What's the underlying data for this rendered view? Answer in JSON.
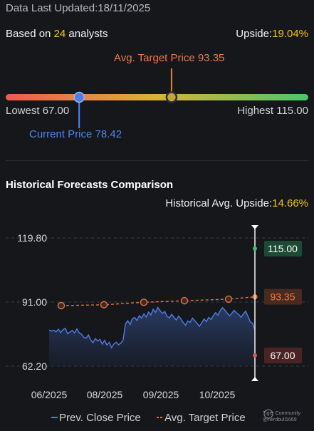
{
  "header": {
    "updated_label": "Data Last Updated:",
    "updated_date": "18/11/2025",
    "based_prefix": "Based on ",
    "analyst_count": "24",
    "based_suffix": " analysts",
    "upside_label": "Upside:",
    "upside_value": "19.04%"
  },
  "range": {
    "avg_target_label": "Avg. Target Price 93.35",
    "lowest_label": "Lowest 67.00",
    "highest_label": "Highest 115.00",
    "current_label": "Current Price 78.42",
    "low": 67.0,
    "high": 115.0,
    "current": 78.42,
    "avg_target": 93.35
  },
  "historical": {
    "title": "Historical Forecasts Comparison",
    "upside_label": "Historical Avg. Upside:",
    "upside_value": "14.66%"
  },
  "chart_data": {
    "type": "line",
    "x_ticks": [
      "06/2025",
      "08/2025",
      "09/2025",
      "10/2025"
    ],
    "y_ticks": [
      "119.80",
      "91.00",
      "62.20"
    ],
    "ylim": [
      62.2,
      119.8
    ],
    "series": [
      {
        "name": "Prev. Close Price",
        "color": "#4f7de6",
        "values": [
          78.5,
          77.9,
          78.4,
          77.6,
          78.8,
          77.3,
          78.6,
          79.2,
          76.8,
          77.5,
          78.3,
          77.1,
          78.9,
          77.2,
          76.5,
          75.1,
          74.8,
          76.2,
          73.9,
          72.8,
          74.6,
          73.5,
          74.2,
          72.1,
          73.8,
          71.7,
          72.9,
          70.5,
          72.2,
          73.0,
          71.8,
          72.5,
          73.9,
          81.2,
          82.6,
          80.9,
          83.5,
          84.1,
          82.7,
          84.9,
          83.8,
          85.7,
          84.3,
          86.5,
          85.2,
          87.8,
          86.4,
          88.6,
          87.1,
          85.9,
          86.8,
          84.6,
          83.9,
          85.5,
          84.2,
          82.9,
          84.7,
          83.4,
          81.8,
          80.6,
          82.5,
          81.9,
          83.8,
          82.6,
          81.4,
          80.1,
          81.7,
          83.4,
          82.2,
          84.1,
          83.2,
          84.9,
          86.3,
          85.1,
          87.2,
          88.5,
          87.4,
          86.1,
          84.8,
          85.9,
          87.3,
          86.2,
          85.4,
          84.1,
          85.7,
          86.9,
          84.6,
          82.1,
          81.5,
          78.4
        ]
      },
      {
        "name": "Avg. Target Price",
        "color": "#e8703c",
        "values": [
          89.4,
          89.8,
          90.9,
          91.6,
          92.3,
          93.35
        ]
      }
    ],
    "forecast": {
      "high": 115.0,
      "avg": 93.35,
      "low": 67.0
    },
    "forecast_labels": {
      "high": "115.00",
      "avg": "93.35",
      "low": "67.00"
    },
    "legend": [
      "Prev. Close Price",
      "Avg. Target Price"
    ],
    "legend_placement": "bottom",
    "grid": true
  },
  "watermark": {
    "line1": "Tiger Community",
    "line2": "@nerdbull1669"
  }
}
